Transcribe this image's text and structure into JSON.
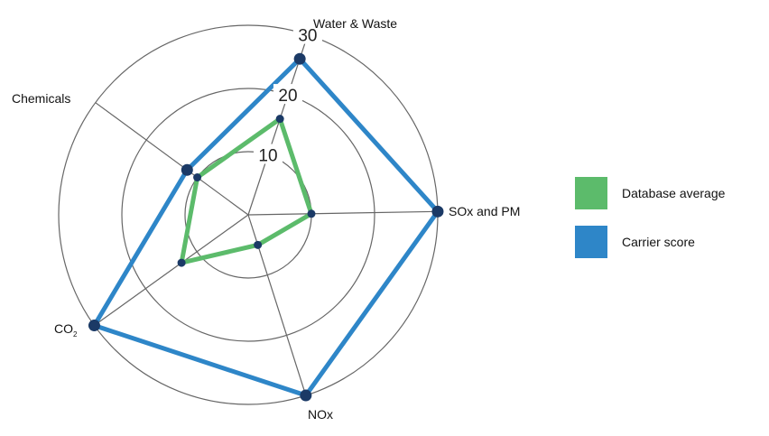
{
  "chart_data": {
    "type": "radar",
    "axes": [
      "Water & Waste",
      "SOx and PM",
      "NOx",
      "CO2",
      "Chemicals"
    ],
    "axis_label_parts": {
      "co2_main": "CO",
      "co2_sub": "2"
    },
    "r_ticks": [
      "10",
      "20",
      "30"
    ],
    "r_max": 30,
    "grid": true,
    "legend_position": "right",
    "series": [
      {
        "name": "Database average",
        "values": [
          16,
          10,
          5,
          13,
          10
        ],
        "color": "#5cbb6b"
      },
      {
        "name": "Carrier score",
        "values": [
          26,
          30,
          30,
          30,
          12
        ],
        "color": "#2e86c8"
      }
    ],
    "marker_color": "#1b3a66",
    "grid_color": "#666666"
  }
}
